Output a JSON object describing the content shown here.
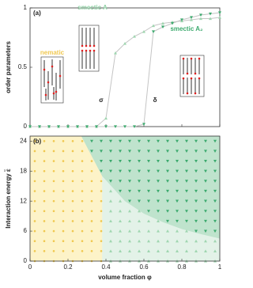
{
  "chart_data": [
    {
      "type": "line",
      "label": "(a)",
      "ylabel": "order parameters",
      "x": [
        0,
        0.05,
        0.1,
        0.15,
        0.2,
        0.25,
        0.3,
        0.35,
        0.4,
        0.45,
        0.5,
        0.55,
        0.6,
        0.65,
        0.7,
        0.75,
        0.8,
        0.85,
        0.9,
        0.95,
        1
      ],
      "series": [
        {
          "name": "σ",
          "color": "#9fd6b0",
          "marker": "triangle-up",
          "line_color": "#c4c4c4",
          "values": [
            0,
            0,
            0,
            0,
            0,
            0,
            0,
            0,
            0.07,
            0.62,
            0.7,
            0.76,
            0.8,
            0.85,
            0.87,
            0.88,
            0.89,
            0.9,
            0.91,
            0.91,
            0.92
          ]
        },
        {
          "name": "δ",
          "color": "#3caa6e",
          "marker": "triangle-down",
          "line_color": "#c4c4c4",
          "values": [
            0,
            0,
            0,
            0,
            0,
            0,
            0,
            0,
            0,
            0,
            0,
            0,
            0.02,
            0.8,
            0.84,
            0.87,
            0.9,
            0.92,
            0.94,
            0.95,
            0.96
          ]
        }
      ],
      "xlim": [
        0,
        1
      ],
      "ylim": [
        0,
        1
      ],
      "xticks": [
        0,
        0.2,
        0.4,
        0.6,
        0.8,
        1
      ],
      "yticks": [
        0,
        0.5,
        1
      ],
      "annotations": [
        {
          "text": "nematic",
          "color": "#f0c850"
        },
        {
          "text": "smectic A",
          "color": "#8fd0a4"
        },
        {
          "text": "smectic A₂",
          "color": "#3caa6e"
        }
      ]
    },
    {
      "type": "phase_diagram",
      "label": "(b)",
      "xlabel": "volume fraction φ",
      "ylabel": "Interaction energy ε̃",
      "xlim": [
        0,
        1
      ],
      "ylim": [
        0,
        25
      ],
      "xticks": [
        0,
        0.2,
        0.4,
        0.6,
        0.8,
        1
      ],
      "yticks": [
        0,
        6,
        12,
        18,
        24
      ],
      "phi_grid": [
        0.025,
        0.075,
        0.125,
        0.175,
        0.225,
        0.275,
        0.325,
        0.375,
        0.425,
        0.475,
        0.525,
        0.575,
        0.625,
        0.675,
        0.725,
        0.775,
        0.825,
        0.875,
        0.925,
        0.975
      ],
      "epsilon_grid": [
        0,
        2,
        4,
        6,
        8,
        10,
        12,
        14,
        16,
        18,
        20,
        22,
        24
      ],
      "nematic_boundary": {
        "phi": [
          0.38,
          0.38,
          0.34,
          0.3,
          0.27
        ],
        "epsilon": [
          0,
          17,
          20,
          23,
          25
        ]
      },
      "smectic_A2_boundary": {
        "phi": [
          0.27,
          0.38,
          0.5,
          0.6,
          0.7,
          0.8,
          0.9,
          1
        ],
        "epsilon": [
          25,
          17,
          12,
          9.5,
          7.8,
          6.4,
          5.4,
          4.5
        ]
      },
      "region_colors": {
        "nematic": [
          "#fdf3c8",
          "#f0c850"
        ],
        "smectic_A": [
          "#e3f2e8",
          "#9fd6b0"
        ],
        "smectic_A2": [
          "#bfe3cd",
          "#3caa6e"
        ]
      }
    }
  ]
}
